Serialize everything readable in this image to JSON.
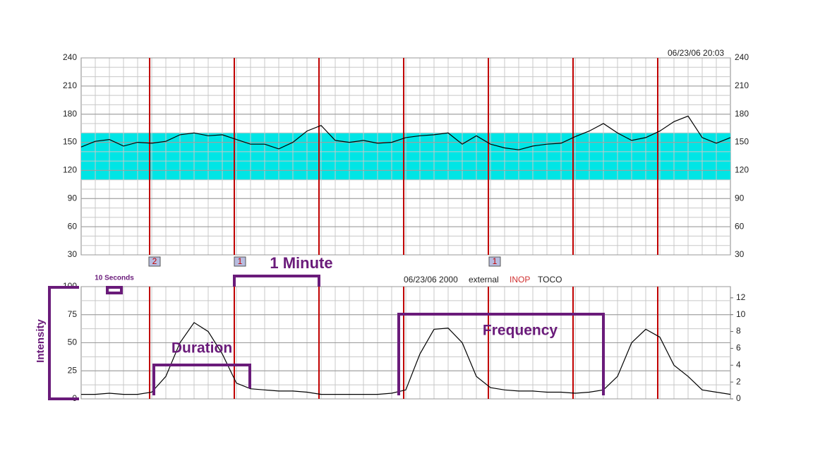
{
  "chart_data": [
    {
      "type": "line",
      "timestamp": "06/23/06 20:03",
      "ylim": [
        30,
        240
      ],
      "yticks": [
        30,
        60,
        90,
        120,
        150,
        180,
        210,
        240
      ],
      "band": [
        110,
        160
      ],
      "band_color": "#00e5e5",
      "grid": true,
      "markers": [
        "2",
        "1",
        "1"
      ],
      "series": [
        {
          "color": "#000000",
          "values": [
            145,
            151,
            153,
            146,
            150,
            149,
            151,
            158,
            160,
            157,
            158,
            153,
            148,
            148,
            143,
            150,
            162,
            168,
            152,
            150,
            152,
            149,
            150,
            155,
            157,
            158,
            160,
            148,
            157,
            148,
            144,
            142,
            146,
            148,
            149,
            156,
            162,
            170,
            160,
            152,
            155,
            162,
            172,
            178,
            155,
            149,
            155
          ]
        }
      ]
    },
    {
      "type": "line",
      "header": [
        "06/23/06 2000",
        "external",
        "INOP",
        "TOCO"
      ],
      "ylabel": "Intensity",
      "ylim": [
        0,
        100
      ],
      "yticks": [
        0,
        25,
        50,
        75,
        100
      ],
      "y2lim": [
        0,
        13.33
      ],
      "y2ticks": [
        0,
        2,
        4,
        6,
        8,
        10,
        12
      ],
      "grid": true,
      "series": [
        {
          "color": "#000000",
          "values": [
            4,
            4,
            5,
            4,
            4,
            6,
            20,
            50,
            68,
            60,
            40,
            14,
            9,
            8,
            7,
            7,
            6,
            4,
            4,
            4,
            4,
            4,
            5,
            8,
            40,
            62,
            63,
            50,
            20,
            10,
            8,
            7,
            7,
            6,
            6,
            5,
            6,
            8,
            20,
            50,
            62,
            55,
            30,
            20,
            8,
            6,
            4
          ]
        }
      ]
    }
  ],
  "annotations": {
    "ten_seconds": "10 Seconds",
    "one_minute": "1 Minute",
    "duration": "Duration",
    "frequency": "Frequency"
  }
}
